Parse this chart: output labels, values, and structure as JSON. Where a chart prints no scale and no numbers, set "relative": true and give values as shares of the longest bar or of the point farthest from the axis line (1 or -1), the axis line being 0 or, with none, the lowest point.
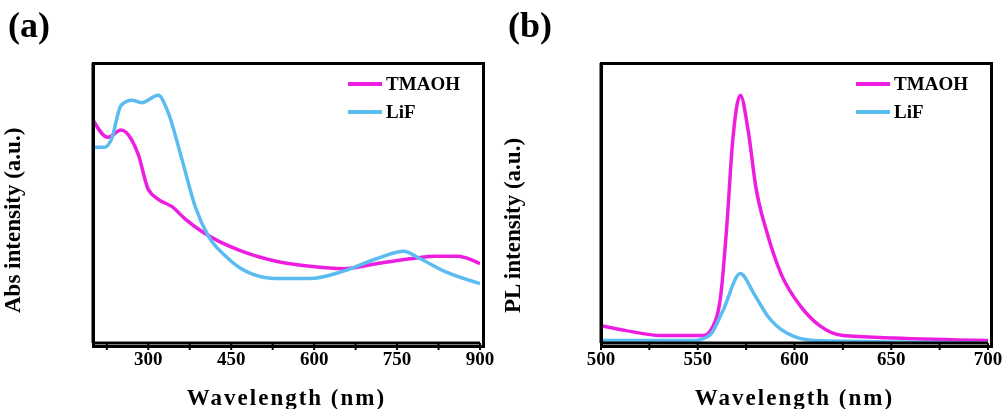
{
  "chart_data": [
    {
      "type": "line",
      "title": "(a)",
      "xlabel": "Wavelength (nm)",
      "ylabel": "Abs intensity (a.u.)",
      "relative": true,
      "legend": "top right",
      "xlim": [
        200,
        900
      ],
      "xticks": [
        {
          "value": 225,
          "label": null
        },
        300,
        {
          "value": 375,
          "label": null
        },
        450,
        {
          "value": 525,
          "label": null
        },
        600,
        {
          "value": 675,
          "label": null
        },
        750,
        {
          "value": 825,
          "label": null
        },
        900
      ],
      "series": [
        {
          "name": "TMAOH",
          "color": "#ee1ee0",
          "x": [
            200,
            227,
            251,
            270,
            282,
            300,
            318,
            343,
            367,
            397,
            428,
            470,
            531,
            592,
            653,
            713,
            774,
            817,
            859,
            900
          ],
          "values": [
            0.9,
            0.83,
            0.86,
            0.82,
            0.76,
            0.62,
            0.58,
            0.55,
            0.5,
            0.45,
            0.41,
            0.37,
            0.33,
            0.31,
            0.3,
            0.32,
            0.34,
            0.35,
            0.35,
            0.32
          ]
        },
        {
          "name": "LiF",
          "color": "#5bbcf0",
          "x": [
            200,
            221,
            233,
            251,
            270,
            288,
            318,
            336,
            361,
            385,
            409,
            440,
            476,
            531,
            592,
            653,
            713,
            762,
            792,
            835,
            900
          ],
          "values": [
            0.79,
            0.79,
            0.82,
            0.96,
            0.98,
            0.97,
            1.0,
            0.93,
            0.74,
            0.55,
            0.43,
            0.35,
            0.29,
            0.26,
            0.26,
            0.29,
            0.34,
            0.37,
            0.34,
            0.29,
            0.24
          ]
        }
      ]
    },
    {
      "type": "line",
      "title": "(b)",
      "xlabel": "Wavelength (nm)",
      "ylabel": "PL intensity (a.u.)",
      "relative": true,
      "legend": "top right",
      "xlim": [
        500,
        700
      ],
      "xticks": [
        500,
        {
          "value": 525,
          "label": null
        },
        550,
        {
          "value": 575,
          "label": null
        },
        600,
        {
          "value": 625,
          "label": null
        },
        650,
        {
          "value": 675,
          "label": null
        },
        700
      ],
      "series": [
        {
          "name": "TMAOH",
          "color": "#ee1ee0",
          "x": [
            500,
            513,
            531,
            553,
            558,
            562,
            565,
            568,
            572,
            576,
            580,
            586,
            593,
            603,
            613,
            625,
            651,
            700
          ],
          "values": [
            0.07,
            0.05,
            0.03,
            0.03,
            0.07,
            0.2,
            0.47,
            0.81,
            1.0,
            0.86,
            0.63,
            0.44,
            0.28,
            0.15,
            0.07,
            0.03,
            0.02,
            0.01
          ]
        },
        {
          "name": "LiF",
          "color": "#5bbcf0",
          "x": [
            500,
            548,
            556,
            563,
            572,
            579,
            586,
            596,
            610,
            700
          ],
          "values": [
            0.01,
            0.01,
            0.03,
            0.13,
            0.28,
            0.2,
            0.11,
            0.04,
            0.01,
            0.0
          ]
        }
      ]
    }
  ]
}
